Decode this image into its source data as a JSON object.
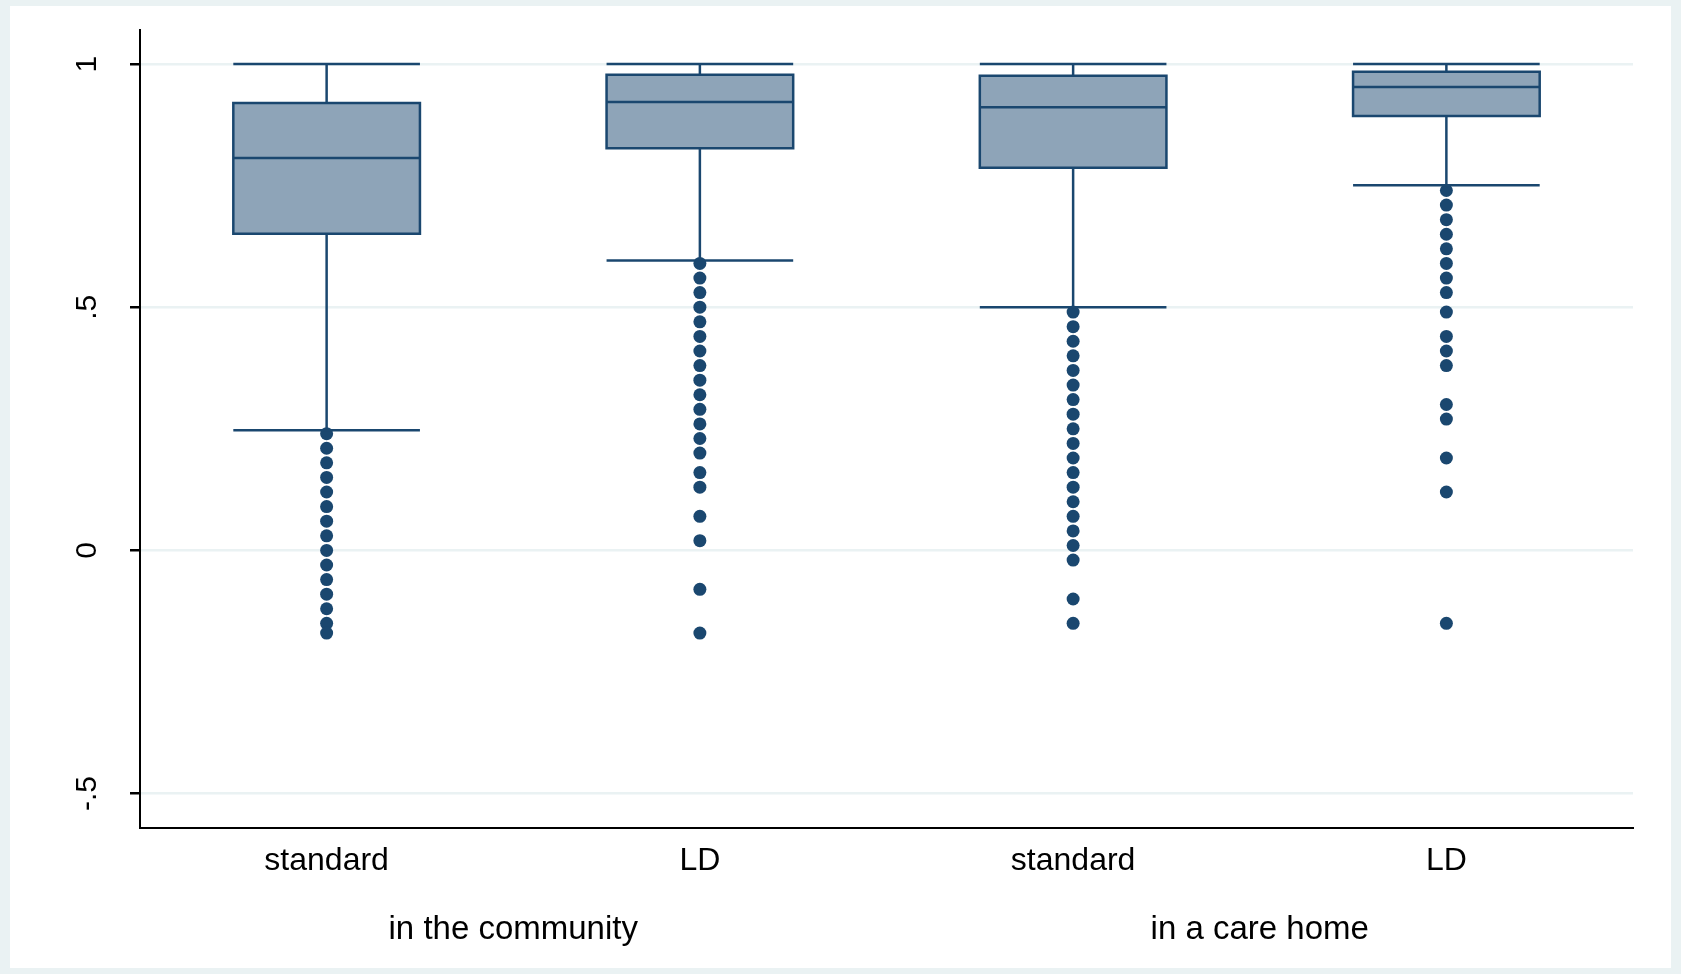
{
  "chart_data": {
    "type": "box",
    "categories": [
      "standard",
      "LD",
      "standard",
      "LD"
    ],
    "annotations": [
      "in the community",
      "in a care home"
    ],
    "color": "#8ea4b8",
    "ylim": [
      -0.57,
      1.07
    ],
    "yticks": [
      {
        "value": -0.5,
        "label": "-.5"
      },
      {
        "value": 0,
        "label": "0"
      },
      {
        "value": 0.5,
        "label": ".5"
      },
      {
        "value": 1,
        "label": "1"
      }
    ],
    "grid": "y",
    "legend": false,
    "marker": "circle",
    "boxes": [
      {
        "low": 0.247,
        "q1": 0.651,
        "median": 0.807,
        "q3": 0.92,
        "high": 1.0,
        "outliers": [
          0.24,
          0.21,
          0.18,
          0.15,
          0.12,
          0.09,
          0.06,
          0.03,
          0,
          -0.03,
          -0.06,
          -0.09,
          -0.12,
          -0.15,
          -0.17
        ]
      },
      {
        "low": 0.596,
        "q1": 0.827,
        "median": 0.922,
        "q3": 0.978,
        "high": 1.0,
        "outliers": [
          0.59,
          0.56,
          0.53,
          0.5,
          0.47,
          0.44,
          0.41,
          0.38,
          0.35,
          0.32,
          0.29,
          0.26,
          0.23,
          0.2,
          0.16,
          0.13,
          0.07,
          0.02,
          -0.08,
          -0.17
        ]
      },
      {
        "low": 0.5,
        "q1": 0.787,
        "median": 0.911,
        "q3": 0.976,
        "high": 1.0,
        "outliers": [
          0.49,
          0.46,
          0.43,
          0.4,
          0.37,
          0.34,
          0.31,
          0.28,
          0.25,
          0.22,
          0.19,
          0.16,
          0.13,
          0.1,
          0.07,
          0.04,
          0.01,
          -0.02,
          -0.1,
          -0.15
        ]
      },
      {
        "low": 0.751,
        "q1": 0.893,
        "median": 0.953,
        "q3": 0.984,
        "high": 1.0,
        "outliers": [
          0.74,
          0.71,
          0.68,
          0.65,
          0.62,
          0.59,
          0.56,
          0.53,
          0.49,
          0.44,
          0.41,
          0.38,
          0.3,
          0.27,
          0.19,
          0.12,
          -0.15
        ]
      }
    ]
  }
}
